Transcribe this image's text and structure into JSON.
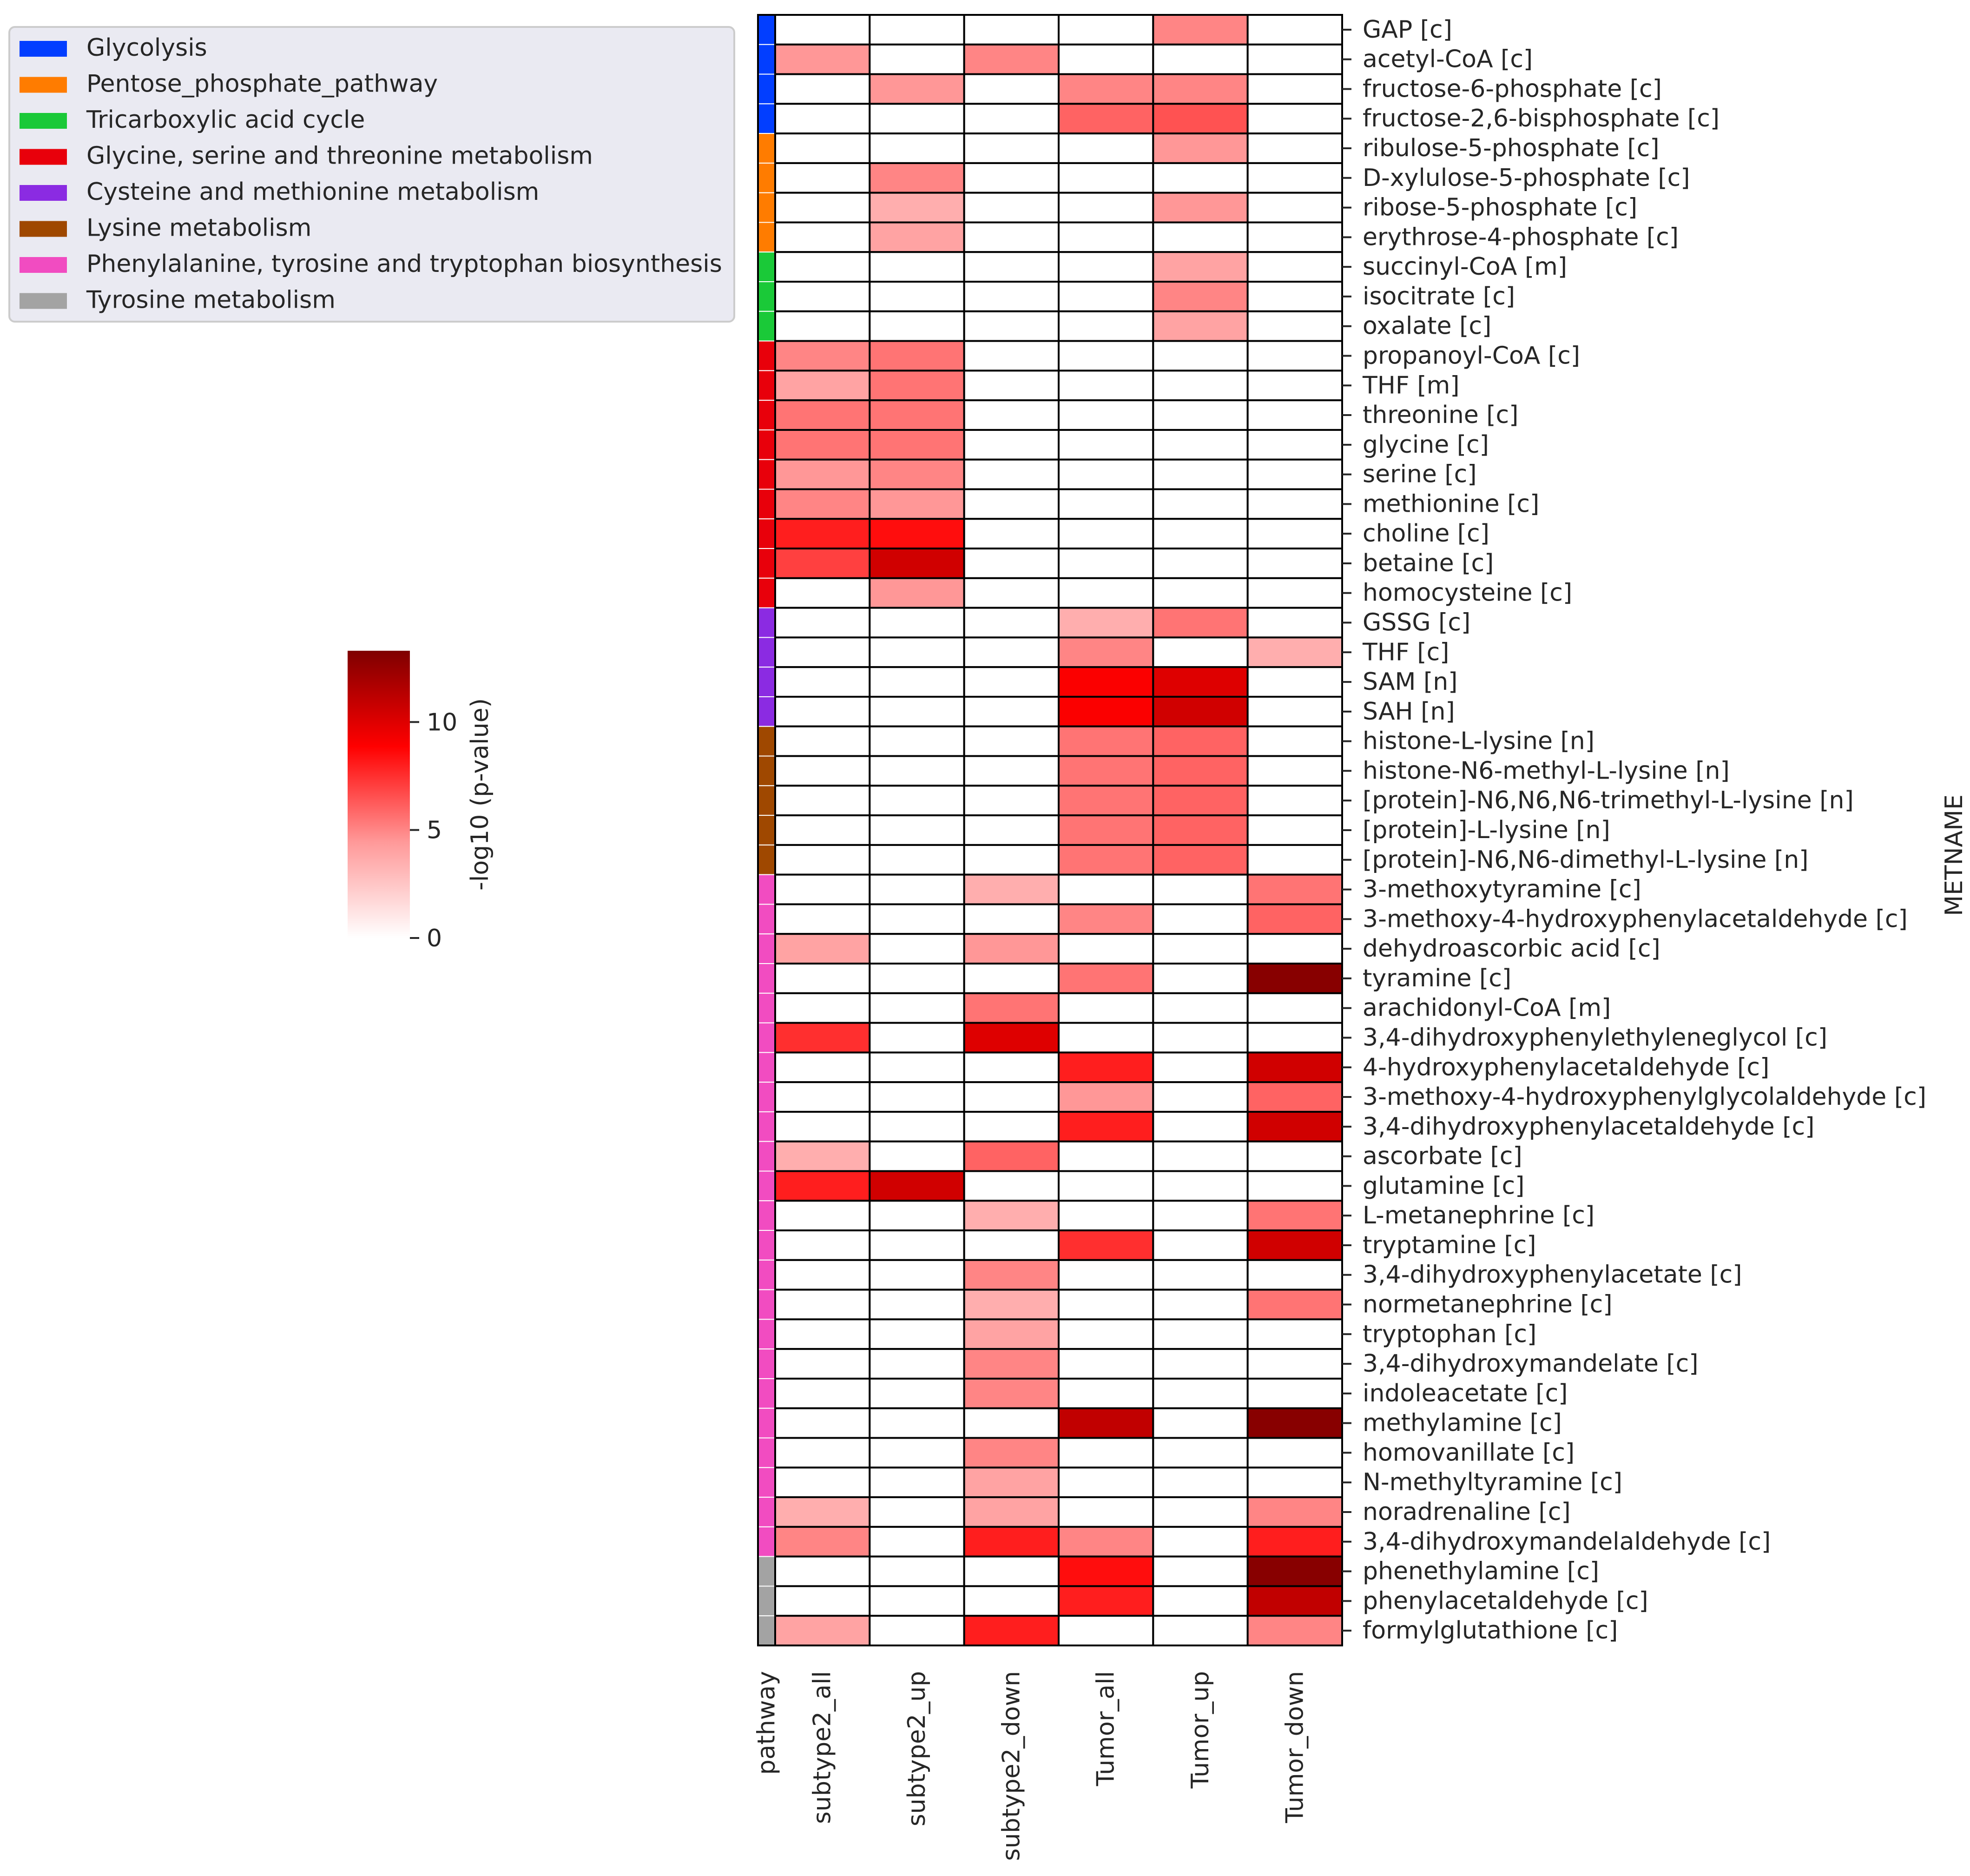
{
  "chart_data": {
    "type": "heatmap",
    "title": "",
    "columns": [
      "subtype2_all",
      "subtype2_up",
      "subtype2_down",
      "Tumor_all",
      "Tumor_up",
      "Tumor_down"
    ],
    "pathway_column_label": "pathway",
    "ylabel": "METNAME",
    "colorbar": {
      "label": "-log10 (p-value)",
      "min": 0,
      "max": 13.3,
      "ticks": [
        0,
        5,
        10
      ],
      "colormap": [
        "#ffffff",
        "#ff9999",
        "#ff0000",
        "#7f0000"
      ]
    },
    "legend": {
      "position": "top-left",
      "items": [
        {
          "name": "Glycolysis",
          "color": "#023eff"
        },
        {
          "name": "Pentose_phosphate_pathway",
          "color": "#ff7c00"
        },
        {
          "name": "Tricarboxylic acid cycle",
          "color": "#1ac938"
        },
        {
          "name": "Glycine, serine and threonine metabolism",
          "color": "#e8000b"
        },
        {
          "name": "Cysteine and methionine metabolism",
          "color": "#8b2be2"
        },
        {
          "name": "Lysine metabolism",
          "color": "#9f4800"
        },
        {
          "name": "Phenylalanine, tyrosine and tryptophan biosynthesis",
          "color": "#f14cc1"
        },
        {
          "name": "Tyrosine metabolism",
          "color": "#a3a3a3"
        }
      ]
    },
    "rows": [
      {
        "name": "GAP [c]",
        "pathway": 0,
        "values": [
          0,
          0,
          0,
          0,
          5,
          0
        ]
      },
      {
        "name": "acetyl-CoA [c]",
        "pathway": 0,
        "values": [
          4.5,
          0,
          5,
          0,
          0,
          0
        ]
      },
      {
        "name": "fructose-6-phosphate [c]",
        "pathway": 0,
        "values": [
          0,
          4.5,
          0,
          5,
          5,
          0
        ]
      },
      {
        "name": "fructose-2,6-bisphosphate [c]",
        "pathway": 0,
        "values": [
          0,
          0,
          0,
          6,
          6.5,
          0
        ]
      },
      {
        "name": "ribulose-5-phosphate [c]",
        "pathway": 1,
        "values": [
          0,
          0,
          0,
          0,
          4.5,
          0
        ]
      },
      {
        "name": "D-xylulose-5-phosphate [c]",
        "pathway": 1,
        "values": [
          0,
          5,
          0,
          0,
          0,
          0
        ]
      },
      {
        "name": "ribose-5-phosphate [c]",
        "pathway": 1,
        "values": [
          0,
          3.5,
          0,
          0,
          4.5,
          0
        ]
      },
      {
        "name": "erythrose-4-phosphate [c]",
        "pathway": 1,
        "values": [
          0,
          4,
          0,
          0,
          0,
          0
        ]
      },
      {
        "name": "succinyl-CoA [m]",
        "pathway": 2,
        "values": [
          0,
          0,
          0,
          0,
          4,
          0
        ]
      },
      {
        "name": "isocitrate [c]",
        "pathway": 2,
        "values": [
          0,
          0,
          0,
          0,
          5,
          0
        ]
      },
      {
        "name": "oxalate [c]",
        "pathway": 2,
        "values": [
          0,
          0,
          0,
          0,
          4,
          0
        ]
      },
      {
        "name": "propanoyl-CoA [c]",
        "pathway": 3,
        "values": [
          5,
          5.5,
          0,
          0,
          0,
          0
        ]
      },
      {
        "name": "THF [m]",
        "pathway": 3,
        "values": [
          4,
          5.5,
          0,
          0,
          0,
          0
        ]
      },
      {
        "name": "threonine [c]",
        "pathway": 3,
        "values": [
          5.5,
          5.5,
          0,
          0,
          0,
          0
        ]
      },
      {
        "name": "glycine [c]",
        "pathway": 3,
        "values": [
          5.5,
          5.5,
          0,
          0,
          0,
          0
        ]
      },
      {
        "name": "serine [c]",
        "pathway": 3,
        "values": [
          4.5,
          5,
          0,
          0,
          0,
          0
        ]
      },
      {
        "name": "methionine [c]",
        "pathway": 3,
        "values": [
          5,
          4.5,
          0,
          0,
          0,
          0
        ]
      },
      {
        "name": "choline [c]",
        "pathway": 3,
        "values": [
          8,
          8.5,
          0,
          0,
          0,
          0
        ]
      },
      {
        "name": "betaine [c]",
        "pathway": 3,
        "values": [
          7,
          10.5,
          0,
          0,
          0,
          0
        ]
      },
      {
        "name": "homocysteine [c]",
        "pathway": 3,
        "values": [
          0,
          4.5,
          0,
          0,
          0,
          0
        ]
      },
      {
        "name": "GSSG [c]",
        "pathway": 4,
        "values": [
          0,
          0,
          0,
          3.5,
          5.5,
          0
        ]
      },
      {
        "name": "THF [c]",
        "pathway": 4,
        "values": [
          0,
          0,
          0,
          5,
          0,
          3.5
        ]
      },
      {
        "name": "SAM [n]",
        "pathway": 4,
        "values": [
          0,
          0,
          0,
          9,
          10,
          0
        ]
      },
      {
        "name": "SAH [n]",
        "pathway": 4,
        "values": [
          0,
          0,
          0,
          9,
          10.5,
          0
        ]
      },
      {
        "name": "histone-L-lysine [n]",
        "pathway": 5,
        "values": [
          0,
          0,
          0,
          5.5,
          6,
          0
        ]
      },
      {
        "name": "histone-N6-methyl-L-lysine [n]",
        "pathway": 5,
        "values": [
          0,
          0,
          0,
          5.5,
          6,
          0
        ]
      },
      {
        "name": "[protein]-N6,N6,N6-trimethyl-L-lysine [n]",
        "pathway": 5,
        "values": [
          0,
          0,
          0,
          5.5,
          6,
          0
        ]
      },
      {
        "name": "[protein]-L-lysine [n]",
        "pathway": 5,
        "values": [
          0,
          0,
          0,
          5.5,
          6,
          0
        ]
      },
      {
        "name": "[protein]-N6,N6-dimethyl-L-lysine [n]",
        "pathway": 5,
        "values": [
          0,
          0,
          0,
          5.5,
          6,
          0
        ]
      },
      {
        "name": "3-methoxytyramine [c]",
        "pathway": 6,
        "values": [
          0,
          0,
          3.5,
          0,
          0,
          5.5
        ]
      },
      {
        "name": "3-methoxy-4-hydroxyphenylacetaldehyde [c]",
        "pathway": 6,
        "values": [
          0,
          0,
          0,
          5,
          0,
          6
        ]
      },
      {
        "name": "dehydroascorbic acid [c]",
        "pathway": 6,
        "values": [
          4,
          0,
          4.5,
          0,
          0,
          0
        ]
      },
      {
        "name": "tyramine [c]",
        "pathway": 6,
        "values": [
          0,
          0,
          0,
          5.5,
          0,
          13
        ]
      },
      {
        "name": "arachidonyl-CoA [m]",
        "pathway": 6,
        "values": [
          0,
          0,
          5.5,
          0,
          0,
          0
        ]
      },
      {
        "name": "3,4-dihydroxyphenylethyleneglycol [c]",
        "pathway": 6,
        "values": [
          7.5,
          0,
          10,
          0,
          0,
          0
        ]
      },
      {
        "name": "4-hydroxyphenylacetaldehyde [c]",
        "pathway": 6,
        "values": [
          0,
          0,
          0,
          8,
          0,
          10.5
        ]
      },
      {
        "name": "3-methoxy-4-hydroxyphenylglycolaldehyde [c]",
        "pathway": 6,
        "values": [
          0,
          0,
          0,
          4.5,
          0,
          6
        ]
      },
      {
        "name": "3,4-dihydroxyphenylacetaldehyde [c]",
        "pathway": 6,
        "values": [
          0,
          0,
          0,
          8,
          0,
          10.5
        ]
      },
      {
        "name": "ascorbate [c]",
        "pathway": 6,
        "values": [
          3.5,
          0,
          6,
          0,
          0,
          0
        ]
      },
      {
        "name": "glutamine [c]",
        "pathway": 6,
        "values": [
          8,
          10.5,
          0,
          0,
          0,
          0
        ]
      },
      {
        "name": "L-metanephrine [c]",
        "pathway": 6,
        "values": [
          0,
          0,
          3.5,
          0,
          0,
          5.5
        ]
      },
      {
        "name": "tryptamine [c]",
        "pathway": 6,
        "values": [
          0,
          0,
          0,
          7.5,
          0,
          10.5
        ]
      },
      {
        "name": "3,4-dihydroxyphenylacetate [c]",
        "pathway": 6,
        "values": [
          0,
          0,
          5,
          0,
          0,
          0
        ]
      },
      {
        "name": "normetanephrine [c]",
        "pathway": 6,
        "values": [
          0,
          0,
          3.5,
          0,
          0,
          5.5
        ]
      },
      {
        "name": "tryptophan [c]",
        "pathway": 6,
        "values": [
          0,
          0,
          4,
          0,
          0,
          0
        ]
      },
      {
        "name": "3,4-dihydroxymandelate [c]",
        "pathway": 6,
        "values": [
          0,
          0,
          5,
          0,
          0,
          0
        ]
      },
      {
        "name": "indoleacetate [c]",
        "pathway": 6,
        "values": [
          0,
          0,
          5,
          0,
          0,
          0
        ]
      },
      {
        "name": "methylamine [c]",
        "pathway": 6,
        "values": [
          0,
          0,
          0,
          11,
          0,
          13
        ]
      },
      {
        "name": "homovanillate [c]",
        "pathway": 6,
        "values": [
          0,
          0,
          5,
          0,
          0,
          0
        ]
      },
      {
        "name": "N-methyltyramine [c]",
        "pathway": 6,
        "values": [
          0,
          0,
          4,
          0,
          0,
          0
        ]
      },
      {
        "name": "noradrenaline [c]",
        "pathway": 6,
        "values": [
          3.5,
          0,
          4,
          0,
          0,
          5
        ]
      },
      {
        "name": "3,4-dihydroxymandelaldehyde [c]",
        "pathway": 6,
        "values": [
          5,
          0,
          8,
          5,
          0,
          8
        ]
      },
      {
        "name": "phenethylamine [c]",
        "pathway": 7,
        "values": [
          0,
          0,
          0,
          8.5,
          0,
          13
        ]
      },
      {
        "name": "phenylacetaldehyde [c]",
        "pathway": 7,
        "values": [
          0,
          0,
          0,
          8,
          0,
          11
        ]
      },
      {
        "name": "formylglutathione [c]",
        "pathway": 7,
        "values": [
          4,
          0,
          8,
          0,
          0,
          5
        ]
      }
    ]
  }
}
